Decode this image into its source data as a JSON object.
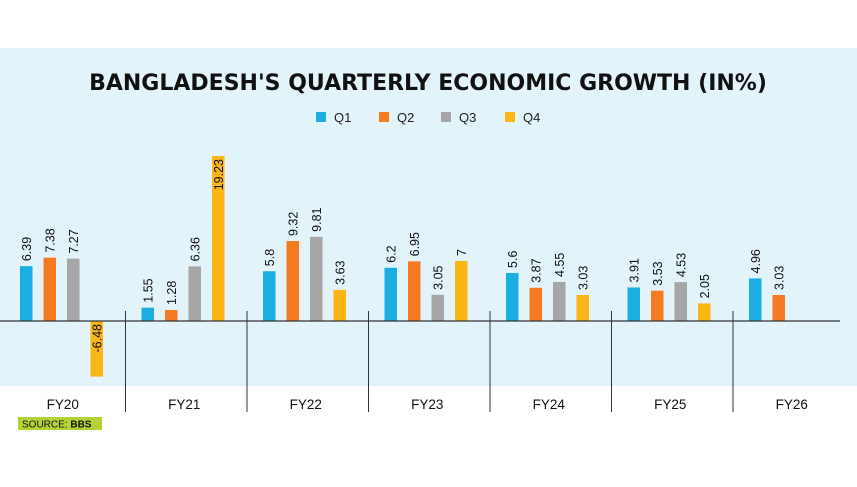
{
  "chart_data": {
    "type": "bar",
    "title": "BANGLADESH'S QUARTERLY ECONOMIC GROWTH (IN%)",
    "xlabel": "",
    "ylabel": "",
    "ylim": [
      -6.48,
      19.23
    ],
    "legend_position": "top-center",
    "grid": false,
    "categories": [
      "FY20",
      "FY21",
      "FY22",
      "FY23",
      "FY24",
      "FY25",
      "FY26"
    ],
    "series": [
      {
        "name": "Q1",
        "color": "#1aaee3",
        "values": [
          6.39,
          1.55,
          5.8,
          6.2,
          5.6,
          3.91,
          4.96
        ],
        "labels": [
          "6.39",
          "1.55",
          "5.8",
          "6.2",
          "5.6",
          "3.91",
          "4.96"
        ]
      },
      {
        "name": "Q2",
        "color": "#f47b20",
        "values": [
          7.38,
          1.28,
          9.32,
          6.95,
          3.87,
          3.53,
          3.03
        ],
        "labels": [
          "7.38",
          "1.28",
          "9.32",
          "6.95",
          "3.87",
          "3.53",
          "3.03"
        ]
      },
      {
        "name": "Q3",
        "color": "#a6a6a6",
        "values": [
          7.27,
          6.36,
          9.81,
          3.05,
          4.55,
          4.53,
          null
        ],
        "labels": [
          "7.27",
          "6.36",
          "9.81",
          "3.05",
          "4.55",
          "4.53",
          null
        ]
      },
      {
        "name": "Q4",
        "color": "#fbb616",
        "values": [
          -6.48,
          19.23,
          3.63,
          7,
          3.03,
          2.05,
          null
        ],
        "labels": [
          "-6.48",
          "19.23",
          "3.63",
          "7",
          "3.03",
          "2.05",
          null
        ]
      }
    ],
    "source_label": "SOURCE:",
    "source_name": "BBS"
  },
  "colors": {
    "panel_bg": "#e3f3fa",
    "axis": "#333333",
    "source_bg": "#b3d335"
  }
}
